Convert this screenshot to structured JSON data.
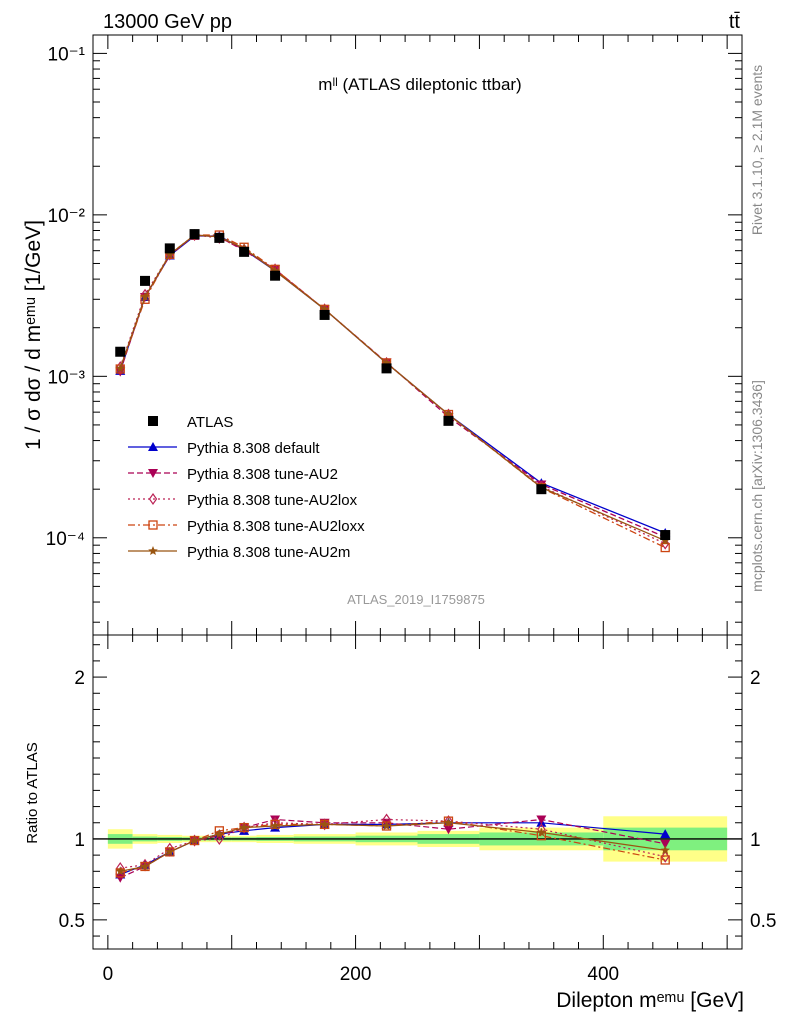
{
  "header": {
    "energy_label": "13000 GeV pp",
    "process_label": "tt̄"
  },
  "side": {
    "rivet_label": "Rivet 3.1.10, ≥ 2.1M events",
    "mcplots_label": "mcplots.cern.ch [arXiv:1306.3436]"
  },
  "chart_data": [
    {
      "type": "line",
      "title": "mˡˡ (ATLAS dileptonic ttbar)",
      "analysis_label": "ATLAS_2019_I1759875",
      "ylabel": "1 / σ  dσ / d mᵉᵐᵘ [1/GeV]",
      "yscale": "log",
      "xlim": [
        -12,
        512
      ],
      "ylim": [
        2.5e-05,
        0.13
      ],
      "y_tick_labels": [
        "10⁻⁴",
        "10⁻³",
        "10⁻²",
        "10⁻¹"
      ],
      "legend_position": "center-left",
      "x": [
        10,
        30,
        50,
        70,
        90,
        110,
        135,
        175,
        225,
        275,
        350,
        450
      ],
      "data": {
        "name": "ATLAS",
        "color": "#000000",
        "values": [
          0.00142,
          0.0039,
          0.0062,
          0.0076,
          0.0072,
          0.0059,
          0.0042,
          0.0024,
          0.00112,
          0.00053,
          0.0002,
          0.000104
        ]
      },
      "series": [
        {
          "name": "Pythia 8.308 default",
          "color": "#0000cc",
          "marker": "triangle-up",
          "dash": "solid",
          "values": [
            0.00108,
            0.0031,
            0.0056,
            0.0074,
            0.0074,
            0.0061,
            0.0045,
            0.0026,
            0.00121,
            0.00058,
            0.000218,
            0.000107
          ]
        },
        {
          "name": "Pythia 8.308 tune-AU2",
          "color": "#aa0055",
          "marker": "triangle-down",
          "dash": "dashed",
          "values": [
            0.00107,
            0.0031,
            0.0056,
            0.0075,
            0.0073,
            0.006,
            0.0046,
            0.0026,
            0.00122,
            0.00056,
            0.000214,
            0.000101
          ]
        },
        {
          "name": "Pythia 8.308 tune-AU2lox",
          "color": "#bb2255",
          "marker": "diamond-open",
          "dash": "dotted",
          "values": [
            0.00114,
            0.0032,
            0.0057,
            0.0075,
            0.0072,
            0.0061,
            0.0046,
            0.0026,
            0.00121,
            0.00058,
            0.000208,
            9.2e-05
          ]
        },
        {
          "name": "Pythia 8.308 tune-AU2loxx",
          "color": "#cc4411",
          "marker": "square-open",
          "dash": "dashdot",
          "values": [
            0.00111,
            0.003,
            0.0057,
            0.0075,
            0.0075,
            0.0063,
            0.0046,
            0.0026,
            0.00121,
            0.00058,
            0.000204,
            8.7e-05
          ]
        },
        {
          "name": "Pythia 8.308 tune-AU2m",
          "color": "#995511",
          "marker": "star",
          "dash": "solid",
          "values": [
            0.00112,
            0.0031,
            0.0057,
            0.0075,
            0.0073,
            0.0062,
            0.0045,
            0.0026,
            0.00121,
            0.00058,
            0.000205,
            9.6e-05
          ]
        }
      ]
    },
    {
      "type": "line",
      "title": "",
      "xlabel": "Dilepton mᵉᵐᵘ [GeV]",
      "ylabel": "Ratio to ATLAS",
      "xlim": [
        -12,
        512
      ],
      "ylim": [
        0.32,
        2.26
      ],
      "x_ticks": [
        0,
        200,
        400
      ],
      "y_ticks": [
        0.5,
        1,
        2
      ],
      "x": [
        10,
        30,
        50,
        70,
        90,
        110,
        135,
        175,
        225,
        275,
        350,
        450
      ],
      "uncertainty_bands": {
        "bins": [
          [
            0,
            20
          ],
          [
            20,
            40
          ],
          [
            40,
            60
          ],
          [
            60,
            80
          ],
          [
            80,
            100
          ],
          [
            100,
            120
          ],
          [
            120,
            150
          ],
          [
            150,
            200
          ],
          [
            200,
            250
          ],
          [
            250,
            300
          ],
          [
            300,
            400
          ],
          [
            400,
            500
          ]
        ],
        "stat": [
          0.03,
          0.015,
          0.012,
          0.01,
          0.01,
          0.01,
          0.012,
          0.015,
          0.02,
          0.03,
          0.04,
          0.07
        ],
        "total": [
          0.06,
          0.03,
          0.025,
          0.02,
          0.02,
          0.02,
          0.025,
          0.03,
          0.04,
          0.05,
          0.07,
          0.14
        ],
        "stat_color": "#7ff07f",
        "total_color": "#ffff88"
      },
      "series": [
        {
          "name": "Pythia 8.308 default",
          "values": [
            0.78,
            0.84,
            0.92,
            0.99,
            1.03,
            1.05,
            1.07,
            1.09,
            1.09,
            1.1,
            1.1,
            1.03
          ]
        },
        {
          "name": "Pythia 8.308 tune-AU2",
          "values": [
            0.76,
            0.83,
            0.92,
            0.99,
            1.02,
            1.07,
            1.12,
            1.1,
            1.1,
            1.06,
            1.12,
            0.97
          ]
        },
        {
          "name": "Pythia 8.308 tune-AU2lox",
          "values": [
            0.82,
            0.84,
            0.94,
            0.99,
            1.0,
            1.07,
            1.1,
            1.09,
            1.12,
            1.11,
            1.06,
            0.89
          ]
        },
        {
          "name": "Pythia 8.308 tune-AU2loxx",
          "values": [
            0.79,
            0.83,
            0.92,
            0.99,
            1.05,
            1.07,
            1.09,
            1.09,
            1.08,
            1.11,
            1.02,
            0.87
          ]
        },
        {
          "name": "Pythia 8.308 tune-AU2m",
          "values": [
            0.8,
            0.83,
            0.92,
            0.99,
            1.03,
            1.07,
            1.08,
            1.09,
            1.08,
            1.1,
            1.04,
            0.93
          ]
        }
      ]
    }
  ]
}
